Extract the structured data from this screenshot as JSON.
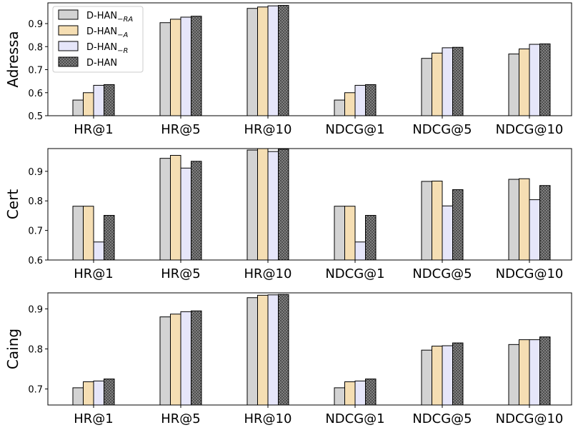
{
  "legend": {
    "entries": [
      {
        "base": "D-HAN",
        "sub": "−RA",
        "color": "#d3d3d3",
        "pattern": "none"
      },
      {
        "base": "D-HAN",
        "sub": "−A",
        "color": "#f5deb3",
        "pattern": "none"
      },
      {
        "base": "D-HAN",
        "sub": "−R",
        "color": "#e6e6fa",
        "pattern": "none"
      },
      {
        "base": "D-HAN",
        "sub": "",
        "color": "#808080",
        "pattern": "dots"
      }
    ],
    "placement": "upper-left (top panel)"
  },
  "chart_data": [
    {
      "type": "bar",
      "ylabel": "Adressa",
      "categories": [
        "HR@1",
        "HR@5",
        "HR@10",
        "NDCG@1",
        "NDCG@5",
        "NDCG@10"
      ],
      "ylim": [
        0.5,
        0.99
      ],
      "yticks": [
        "0.5",
        "0.6",
        "0.7",
        "0.8",
        "0.9"
      ],
      "series": [
        {
          "name": "D-HAN−RA",
          "values": [
            0.568,
            0.904,
            0.966,
            0.568,
            0.749,
            0.768
          ]
        },
        {
          "name": "D-HAN−A",
          "values": [
            0.6,
            0.919,
            0.972,
            0.6,
            0.772,
            0.79
          ]
        },
        {
          "name": "D-HAN−R",
          "values": [
            0.632,
            0.928,
            0.977,
            0.632,
            0.795,
            0.81
          ]
        },
        {
          "name": "D-HAN",
          "values": [
            0.635,
            0.932,
            0.979,
            0.635,
            0.797,
            0.812
          ]
        }
      ]
    },
    {
      "type": "bar",
      "ylabel": "Cert",
      "categories": [
        "HR@1",
        "HR@5",
        "HR@10",
        "NDCG@1",
        "NDCG@5",
        "NDCG@10"
      ],
      "ylim": [
        0.6,
        0.977
      ],
      "yticks": [
        "0.6",
        "0.7",
        "0.8",
        "0.9"
      ],
      "series": [
        {
          "name": "D-HAN−RA",
          "values": [
            0.782,
            0.944,
            0.972,
            0.782,
            0.866,
            0.873
          ]
        },
        {
          "name": "D-HAN−A",
          "values": [
            0.782,
            0.954,
            0.977,
            0.782,
            0.867,
            0.875
          ]
        },
        {
          "name": "D-HAN−R",
          "values": [
            0.661,
            0.911,
            0.967,
            0.661,
            0.783,
            0.804
          ]
        },
        {
          "name": "D-HAN",
          "values": [
            0.751,
            0.934,
            0.975,
            0.751,
            0.838,
            0.852
          ]
        }
      ]
    },
    {
      "type": "bar",
      "ylabel": "Caing",
      "categories": [
        "HR@1",
        "HR@5",
        "HR@10",
        "NDCG@1",
        "NDCG@5",
        "NDCG@10"
      ],
      "ylim": [
        0.66,
        0.94
      ],
      "yticks": [
        "0.7",
        "0.8",
        "0.9"
      ],
      "series": [
        {
          "name": "D-HAN−RA",
          "values": [
            0.703,
            0.88,
            0.928,
            0.703,
            0.797,
            0.811
          ]
        },
        {
          "name": "D-HAN−A",
          "values": [
            0.718,
            0.887,
            0.934,
            0.718,
            0.807,
            0.823
          ]
        },
        {
          "name": "D-HAN−R",
          "values": [
            0.72,
            0.893,
            0.935,
            0.72,
            0.808,
            0.823
          ]
        },
        {
          "name": "D-HAN",
          "values": [
            0.725,
            0.895,
            0.936,
            0.725,
            0.815,
            0.83
          ]
        }
      ]
    }
  ]
}
